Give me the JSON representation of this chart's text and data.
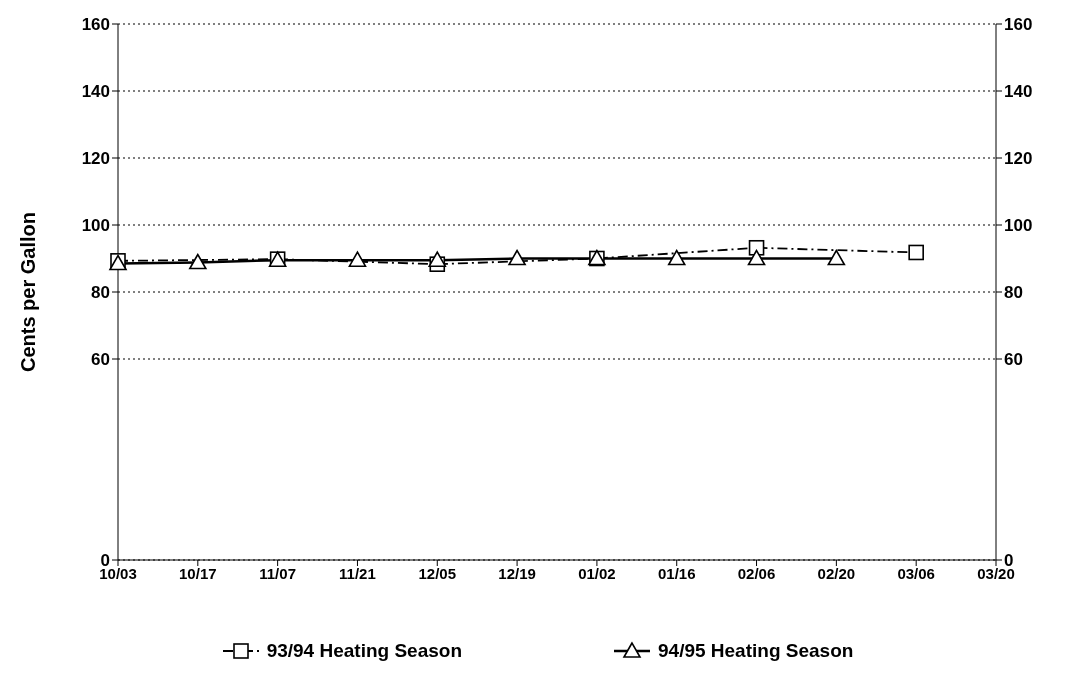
{
  "chart_data": {
    "type": "line",
    "ylabel": "Cents per Gallon",
    "categories": [
      "10/03",
      "10/17",
      "11/07",
      "11/21",
      "12/05",
      "12/19",
      "01/02",
      "01/16",
      "02/06",
      "02/20",
      "03/06",
      "03/20"
    ],
    "series": [
      {
        "name": "93/94 Heating Season",
        "color": "#000000",
        "marker": "square",
        "line_style": "dashed",
        "values": [
          89.3,
          null,
          89.8,
          null,
          88.3,
          null,
          90,
          null,
          93.2,
          null,
          91.8,
          null
        ]
      },
      {
        "name": "94/95 Heating Season",
        "color": "#000000",
        "marker": "triangle",
        "line_style": "solid",
        "values": [
          88.5,
          88.8,
          89.5,
          89.5,
          89.5,
          90,
          90,
          90,
          90,
          90,
          null,
          null
        ]
      }
    ],
    "ylim": [
      0,
      160
    ],
    "yticks": [
      0,
      60,
      80,
      100,
      120,
      140,
      160
    ],
    "y2lim": [
      0,
      160
    ],
    "y2ticks": [
      0,
      60,
      80,
      100,
      120,
      140,
      160
    ],
    "grid": "y",
    "legend": "bottom"
  }
}
